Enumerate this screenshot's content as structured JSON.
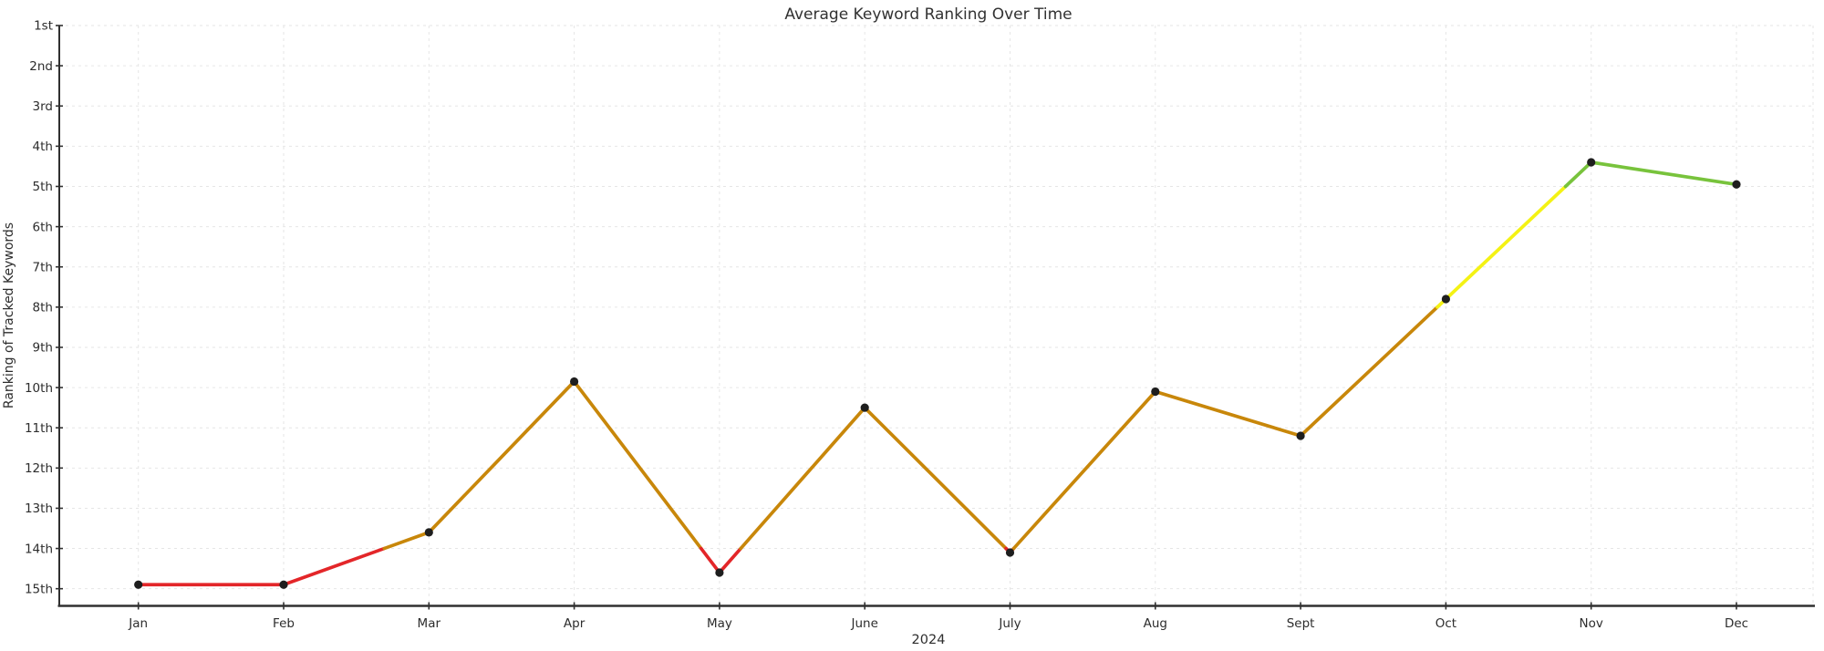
{
  "chart_data": {
    "type": "line",
    "title": "Average Keyword Ranking Over Time",
    "xlabel": "2024",
    "ylabel": "Ranking of Tracked Keywords",
    "x_tick_labels": [
      "Jan",
      "Feb",
      "Mar",
      "Apr",
      "May",
      "June",
      "July",
      "Aug",
      "Sept",
      "Oct",
      "Nov",
      "Dec"
    ],
    "y_tick_labels": [
      "1st",
      "2nd",
      "3rd",
      "4th",
      "5th",
      "6th",
      "7th",
      "8th",
      "9th",
      "10th",
      "11th",
      "12th",
      "13th",
      "14th",
      "15th"
    ],
    "series": [
      {
        "name": "Average Keyword Ranking",
        "values": [
          14.9,
          14.9,
          13.6,
          9.85,
          14.6,
          10.5,
          14.1,
          10.1,
          11.2,
          7.8,
          4.4,
          4.95
        ]
      }
    ],
    "y_axis": {
      "inverted": true,
      "best_rank_at_top": 1,
      "worst_tick": 15,
      "grid": true
    },
    "x_axis": {
      "grid": true
    },
    "legend": "none",
    "color_bands": [
      {
        "rank_range": [
          1,
          5
        ],
        "color": "#78c33c"
      },
      {
        "rank_range": [
          5,
          8
        ],
        "color": "#f4f214"
      },
      {
        "rank_range": [
          8,
          14
        ],
        "color": "#c8870a"
      },
      {
        "rank_range": [
          14,
          16
        ],
        "color": "#e32629"
      }
    ],
    "marker_color": "#1e1e1e",
    "grid_color": "#e6e6e6",
    "axis_color": "#303030",
    "text_color": "#2d2d2d"
  }
}
